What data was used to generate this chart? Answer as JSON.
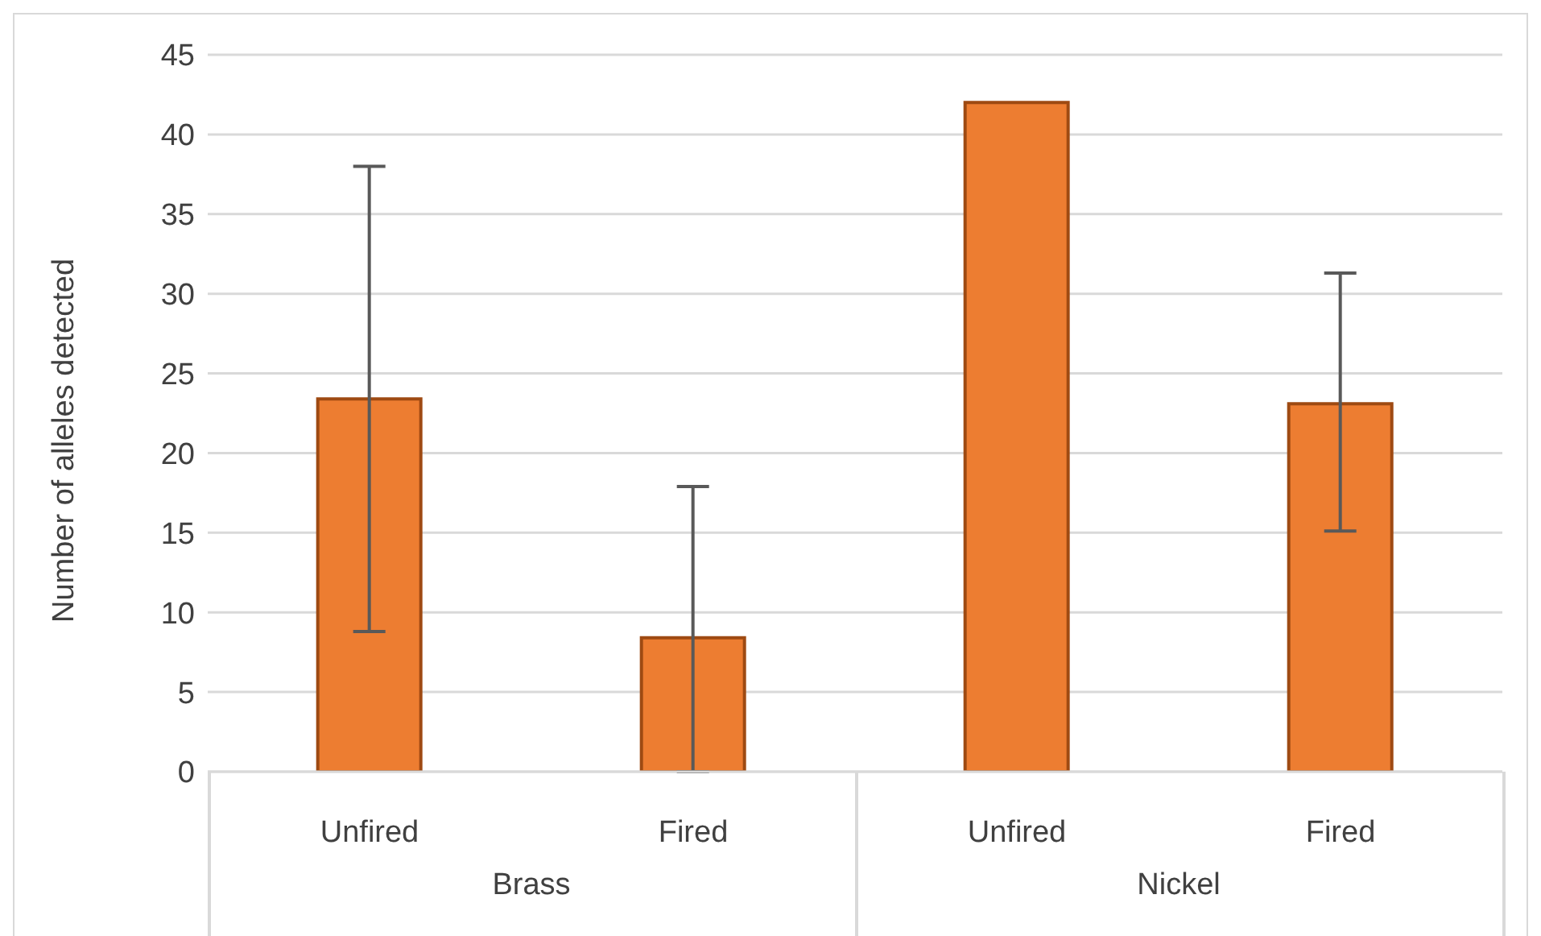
{
  "chart_data": {
    "type": "bar",
    "ylabel": "Number of alleles detected",
    "categories": [
      "Unfired",
      "Fired",
      "Unfired",
      "Fired"
    ],
    "values": [
      23.4,
      8.4,
      42.0,
      23.1
    ],
    "errors": [
      [
        8.8,
        38.0
      ],
      [
        0,
        17.9
      ],
      null,
      [
        15.1,
        31.3
      ]
    ],
    "color": "#ed7d31",
    "ylim": [
      0,
      45
    ],
    "yticks": [
      0,
      5,
      10,
      15,
      20,
      25,
      30,
      35,
      40,
      45
    ],
    "grid": "y",
    "legend": false,
    "annotations": [
      "Brass",
      "Nickel"
    ]
  }
}
